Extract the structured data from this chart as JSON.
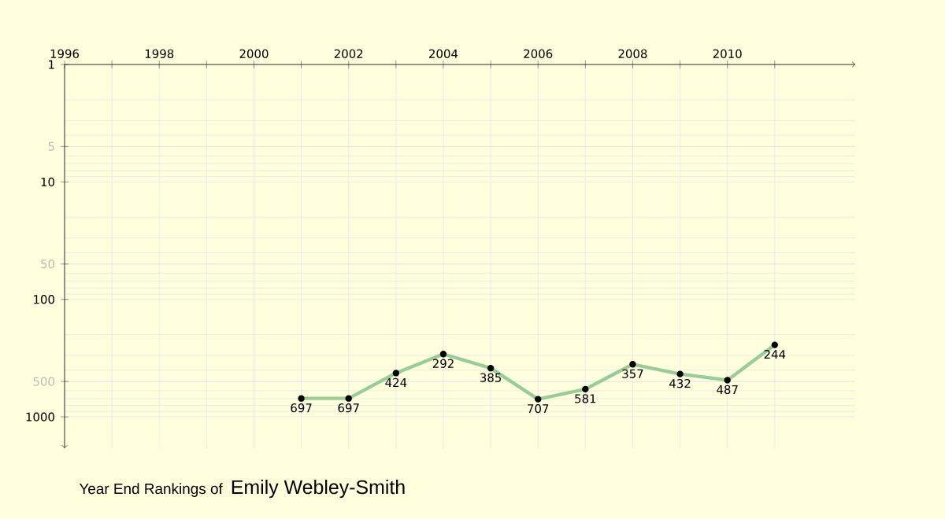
{
  "chart_data": {
    "type": "line",
    "title": "Year End Rankings of",
    "subtitle": "Emily Webley-Smith",
    "x": [
      2001,
      2002,
      2003,
      2004,
      2005,
      2006,
      2007,
      2008,
      2009,
      2010,
      2011
    ],
    "series": [
      {
        "color": "#99cc99",
        "values": [
          697,
          697,
          424,
          292,
          385,
          707,
          581,
          357,
          432,
          487,
          244
        ]
      }
    ],
    "xlim": [
      1996,
      2012.7
    ],
    "xticks": [
      1996,
      {
        "value": 1997,
        "label": null
      },
      1998,
      {
        "value": 1999,
        "label": null
      },
      2000,
      {
        "value": 2001,
        "label": null
      },
      2002,
      {
        "value": 2003,
        "label": null
      },
      2004,
      {
        "value": 2005,
        "label": null
      },
      2006,
      {
        "value": 2007,
        "label": null
      },
      2008,
      {
        "value": 2009,
        "label": null
      },
      2010,
      {
        "value": 2011,
        "label": null
      }
    ],
    "ylim": [
      1850,
      1
    ],
    "yticks": [
      1,
      5,
      10,
      50,
      100,
      500,
      1000
    ],
    "log": "y",
    "grid": true,
    "marker": "circle",
    "line_style": "solid",
    "data_labels": true
  }
}
